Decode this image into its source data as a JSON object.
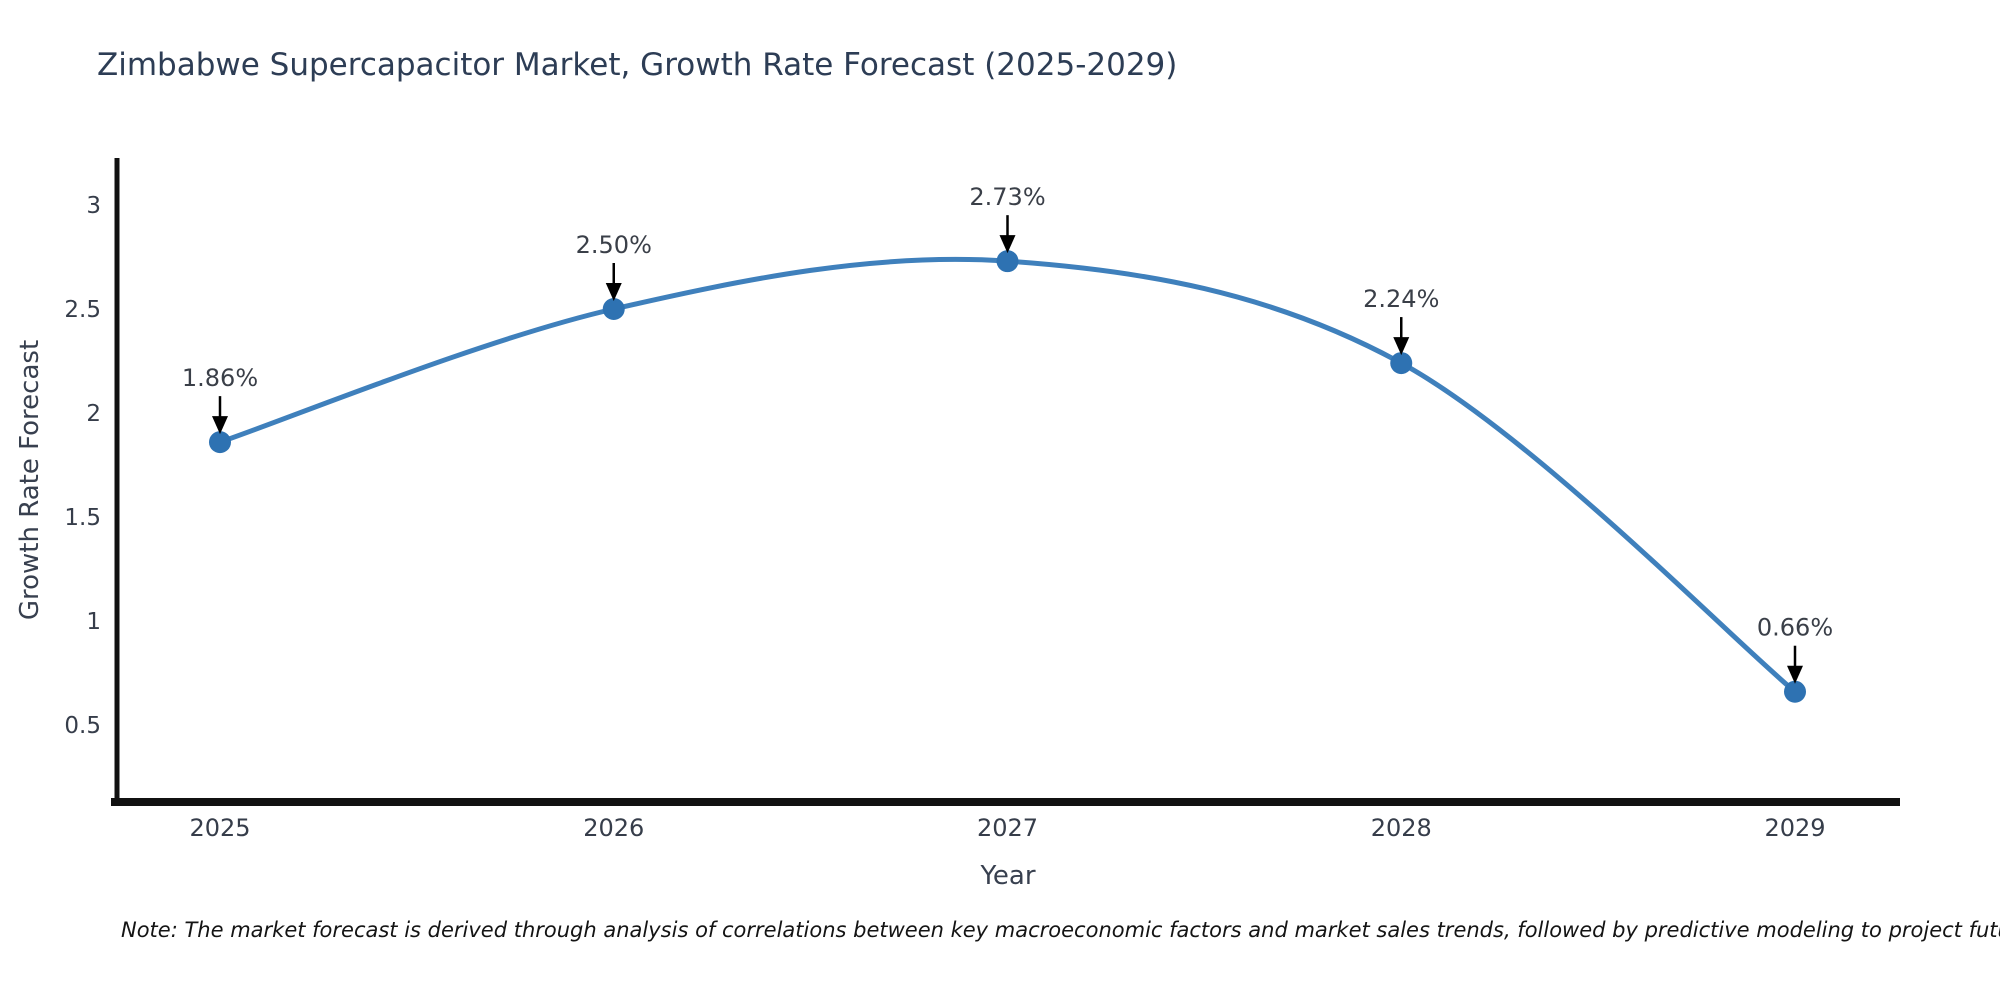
{
  "chart_data": {
    "type": "line",
    "title": "Zimbabwe Supercapacitor Market, Growth Rate Forecast (2025-2029)",
    "xlabel": "Year",
    "ylabel": "Growth Rate Forecast",
    "x": [
      2025,
      2026,
      2027,
      2028,
      2029
    ],
    "values": [
      1.86,
      2.5,
      2.73,
      2.24,
      0.66
    ],
    "point_labels": [
      "1.86%",
      "2.50%",
      "2.73%",
      "2.24%",
      "0.66%"
    ],
    "yticks": [
      0.5,
      1,
      1.5,
      2,
      2.5,
      3
    ],
    "ylim": [
      0.12,
      3.22
    ],
    "grid": false,
    "legend": "none",
    "note": "Note: The market forecast is derived through analysis of correlations between key macroeconomic factors and market sales trends, followed by predictive modeling to project future sales",
    "colors": {
      "line": "#3f80bc",
      "marker": "#2e72b2",
      "axis_spine": "#111111",
      "title_text": "#2d3d55",
      "tick_text": "#363d4a",
      "annotation_text": "#3a3f48",
      "annotation_arrow": "#000000",
      "background": "#ffffff"
    }
  }
}
